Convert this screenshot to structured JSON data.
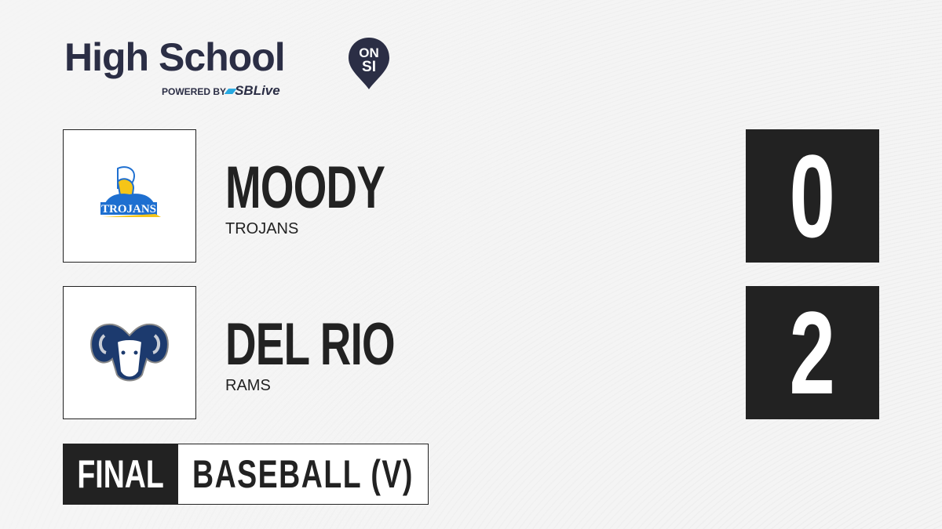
{
  "brand": {
    "title": "High School",
    "badge_top": "ON",
    "badge_bottom": "SI",
    "powered_by": "POWERED BY",
    "partner": "SBLive",
    "colors": {
      "navy": "#2b2e45",
      "partner_blue": "#27a9e1"
    }
  },
  "teams": [
    {
      "name": "MOODY",
      "mascot": "TROJANS",
      "score": "0",
      "logo": "trojan-helmet-logo",
      "logo_text": "TROJANS",
      "logo_colors": [
        "#1e6fd0",
        "#f5c518"
      ]
    },
    {
      "name": "DEL RIO",
      "mascot": "RAMS",
      "score": "2",
      "logo": "ram-head-logo",
      "logo_colors": [
        "#1c3a6e",
        "#ffffff"
      ]
    }
  ],
  "game": {
    "status": "FINAL",
    "sport": "BASEBALL (V)"
  }
}
